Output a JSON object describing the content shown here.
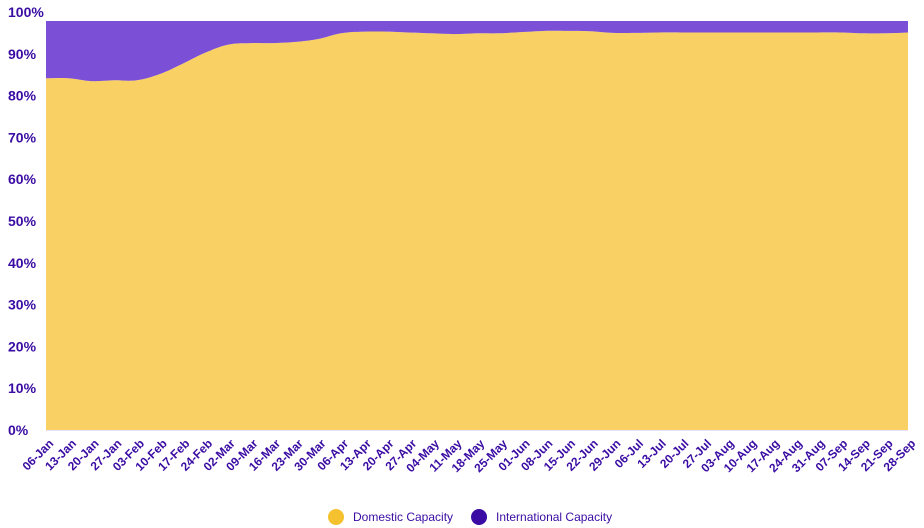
{
  "chart_data": {
    "type": "area",
    "stacked": true,
    "ylim": [
      0,
      100
    ],
    "y_ticks": [
      "0%",
      "10%",
      "20%",
      "30%",
      "40%",
      "50%",
      "60%",
      "70%",
      "80%",
      "90%",
      "100%"
    ],
    "x": [
      "06-Jan",
      "13-Jan",
      "20-Jan",
      "27-Jan",
      "03-Feb",
      "10-Feb",
      "17-Feb",
      "24-Feb",
      "02-Mar",
      "09-Mar",
      "16-Mar",
      "23-Mar",
      "30-Mar",
      "06-Apr",
      "13-Apr",
      "20-Apr",
      "27-Apr",
      "04-May",
      "11-May",
      "18-May",
      "25-May",
      "01-Jun",
      "08-Jun",
      "15-Jun",
      "22-Jun",
      "29-Jun",
      "06-Jul",
      "13-Jul",
      "20-Jul",
      "27-Jul",
      "03-Aug",
      "10-Aug",
      "17-Aug",
      "24-Aug",
      "31-Aug",
      "07-Sep",
      "14-Sep",
      "21-Sep",
      "28-Sep"
    ],
    "series": [
      {
        "name": "Domestic Capacity",
        "color": "#f9d064",
        "values": [
          86,
          86,
          85.3,
          85.5,
          85.5,
          87,
          89.5,
          92.2,
          94.2,
          94.6,
          94.6,
          94.9,
          95.6,
          97,
          97.4,
          97.4,
          97.2,
          97.0,
          96.8,
          97.0,
          97.0,
          97.3,
          97.6,
          97.6,
          97.5,
          97.1,
          97.1,
          97.2,
          97.2,
          97.2,
          97.2,
          97.2,
          97.2,
          97.2,
          97.2,
          97.2,
          97.0,
          97.0,
          97.2
        ]
      },
      {
        "name": "International Capacity",
        "color": "#7b4fd6",
        "values": [
          14,
          14,
          14.7,
          14.5,
          14.5,
          13,
          10.5,
          7.8,
          5.8,
          5.4,
          5.4,
          5.1,
          4.4,
          3.0,
          2.6,
          2.6,
          2.8,
          3.0,
          3.2,
          3.0,
          3.0,
          2.7,
          2.4,
          2.4,
          2.5,
          2.9,
          2.9,
          2.8,
          2.8,
          2.8,
          2.8,
          2.8,
          2.8,
          2.8,
          2.8,
          2.8,
          3.0,
          3.0,
          2.8
        ]
      }
    ],
    "legend": {
      "position": "bottom",
      "items": [
        {
          "label": "Domestic Capacity",
          "color": "#f5c12e"
        },
        {
          "label": "International Capacity",
          "color": "#3a0ca3"
        }
      ]
    },
    "axis_color": "#3a0ca3",
    "grid": false
  }
}
